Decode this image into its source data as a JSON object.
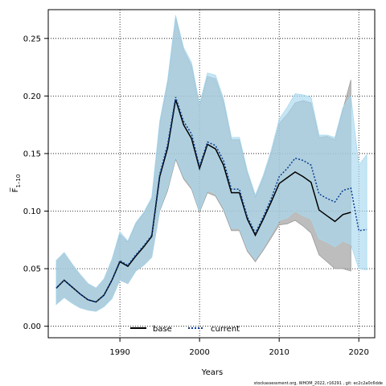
{
  "chart_data": {
    "type": "line",
    "xlabel": "Years",
    "ylabel": "F̅",
    "ylabel_sub": "1–10",
    "xlim": [
      1981,
      2022
    ],
    "ylim": [
      -0.01,
      0.275
    ],
    "x_ticks": [
      1990,
      2000,
      2010,
      2020
    ],
    "y_ticks": [
      0.0,
      0.05,
      0.1,
      0.15,
      0.2,
      0.25
    ],
    "y_tick_labels": [
      "0.00",
      "0.05",
      "0.10",
      "0.15",
      "0.20",
      "0.25"
    ],
    "grid": true,
    "legend_position": "bottom",
    "footer": "stockassessment.org, WHOM_2022, r16291 , git: ec2c2a0c6dde",
    "series": [
      {
        "name": "base",
        "color": "#000000",
        "band_color": "#9a9a9a",
        "x": [
          1982,
          1983,
          1984,
          1985,
          1986,
          1987,
          1988,
          1989,
          1990,
          1991,
          1992,
          1993,
          1994,
          1995,
          1996,
          1997,
          1998,
          1999,
          2000,
          2001,
          2002,
          2003,
          2004,
          2005,
          2006,
          2007,
          2008,
          2009,
          2010,
          2011,
          2012,
          2013,
          2014,
          2015,
          2016,
          2017,
          2018,
          2019
        ],
        "values": [
          0.033,
          0.04,
          0.034,
          0.028,
          0.023,
          0.021,
          0.027,
          0.04,
          0.056,
          0.052,
          0.061,
          0.069,
          0.078,
          0.13,
          0.155,
          0.197,
          0.175,
          0.163,
          0.137,
          0.158,
          0.154,
          0.14,
          0.116,
          0.116,
          0.093,
          0.079,
          0.093,
          0.108,
          0.124,
          0.129,
          0.134,
          0.13,
          0.125,
          0.101,
          0.096,
          0.091,
          0.097,
          0.099
        ],
        "lower": [
          0.019,
          0.025,
          0.02,
          0.016,
          0.014,
          0.013,
          0.017,
          0.024,
          0.04,
          0.037,
          0.048,
          0.053,
          0.06,
          0.1,
          0.118,
          0.145,
          0.128,
          0.119,
          0.099,
          0.116,
          0.113,
          0.101,
          0.083,
          0.083,
          0.065,
          0.056,
          0.066,
          0.077,
          0.088,
          0.089,
          0.092,
          0.087,
          0.081,
          0.062,
          0.056,
          0.05,
          0.05,
          0.048
        ],
        "upper": [
          0.057,
          0.064,
          0.054,
          0.045,
          0.037,
          0.033,
          0.041,
          0.058,
          0.08,
          0.073,
          0.089,
          0.098,
          0.11,
          0.175,
          0.211,
          0.268,
          0.24,
          0.226,
          0.19,
          0.217,
          0.215,
          0.195,
          0.162,
          0.162,
          0.133,
          0.112,
          0.129,
          0.15,
          0.176,
          0.184,
          0.194,
          0.196,
          0.194,
          0.164,
          0.165,
          0.162,
          0.188,
          0.214
        ]
      },
      {
        "name": "current",
        "color": "#0b3d91",
        "band_color": "#a8d8ef",
        "x": [
          1982,
          1983,
          1984,
          1985,
          1986,
          1987,
          1988,
          1989,
          1990,
          1991,
          1992,
          1993,
          1994,
          1995,
          1996,
          1997,
          1998,
          1999,
          2000,
          2001,
          2002,
          2003,
          2004,
          2005,
          2006,
          2007,
          2008,
          2009,
          2010,
          2011,
          2012,
          2013,
          2014,
          2015,
          2016,
          2017,
          2018,
          2019,
          2020,
          2021
        ],
        "values": [
          0.033,
          0.04,
          0.034,
          0.028,
          0.023,
          0.021,
          0.027,
          0.04,
          0.057,
          0.053,
          0.062,
          0.07,
          0.079,
          0.132,
          0.158,
          0.199,
          0.178,
          0.167,
          0.139,
          0.16,
          0.157,
          0.144,
          0.119,
          0.119,
          0.095,
          0.081,
          0.095,
          0.111,
          0.13,
          0.137,
          0.146,
          0.144,
          0.14,
          0.115,
          0.111,
          0.108,
          0.118,
          0.12,
          0.083,
          0.084
        ],
        "lower": [
          0.019,
          0.025,
          0.02,
          0.016,
          0.014,
          0.013,
          0.017,
          0.024,
          0.04,
          0.037,
          0.048,
          0.053,
          0.06,
          0.101,
          0.12,
          0.147,
          0.13,
          0.121,
          0.1,
          0.118,
          0.115,
          0.103,
          0.085,
          0.085,
          0.067,
          0.058,
          0.068,
          0.08,
          0.092,
          0.094,
          0.1,
          0.096,
          0.093,
          0.076,
          0.073,
          0.069,
          0.074,
          0.071,
          0.05,
          0.049
        ],
        "upper": [
          0.057,
          0.064,
          0.054,
          0.045,
          0.037,
          0.033,
          0.041,
          0.058,
          0.082,
          0.074,
          0.09,
          0.099,
          0.112,
          0.178,
          0.214,
          0.27,
          0.242,
          0.229,
          0.193,
          0.22,
          0.218,
          0.198,
          0.164,
          0.164,
          0.135,
          0.114,
          0.131,
          0.153,
          0.18,
          0.19,
          0.202,
          0.201,
          0.199,
          0.166,
          0.166,
          0.164,
          0.19,
          0.2,
          0.14,
          0.149
        ]
      }
    ]
  }
}
